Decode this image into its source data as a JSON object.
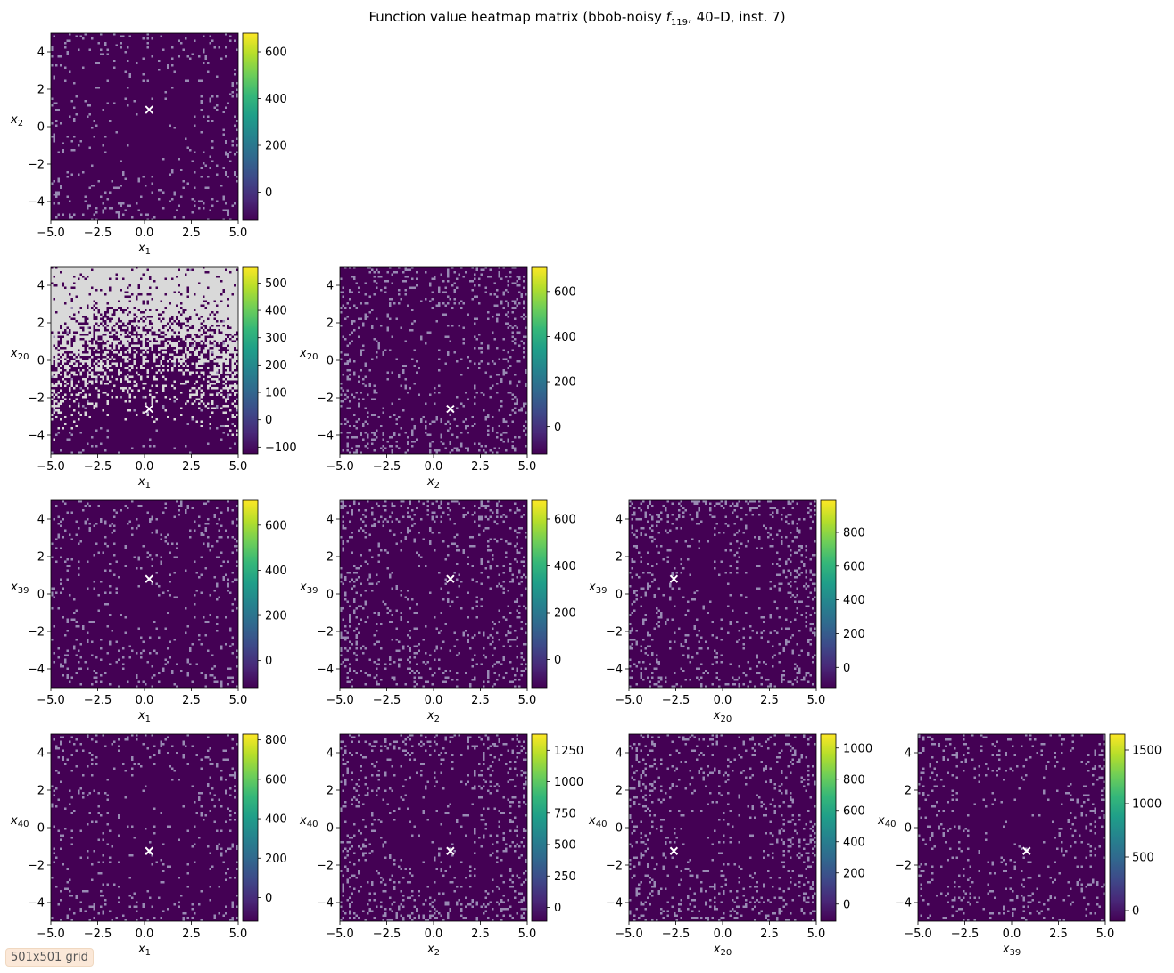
{
  "chart_data": {
    "type": "heatmap",
    "title": "Function value heatmap matrix (bbob-noisy $f_{119}$, 40–D, inst. 7)",
    "title_parts": {
      "prefix": "Function value heatmap matrix (bbob-noisy ",
      "fname": "f",
      "fsub": "119",
      "suffix": ", 40–D, inst. 7)"
    },
    "grid_label": "501x501 grid",
    "axis_range": [
      -5,
      5
    ],
    "axis_ticks": {
      "x": [
        "−5.0",
        "−2.5",
        "0.0",
        "2.5",
        "5.0"
      ],
      "y": [
        "−4",
        "−2",
        "0",
        "2",
        "4"
      ]
    },
    "colormap": "viridis",
    "nan_color": "#d9d9d9",
    "marker_color": "#ffffff",
    "panels": [
      {
        "row": 0,
        "col": 0,
        "xdim": "1",
        "ydim": "2",
        "marker": [
          0.25,
          0.9
        ],
        "cbar_max": 680,
        "cbar_min": -120,
        "cbar_ticks": [
          "0",
          "200",
          "400",
          "600"
        ],
        "cbar_tick_values": [
          0,
          200,
          400,
          600
        ],
        "speckle": 0.05,
        "nan_frac": 0
      },
      {
        "row": 1,
        "col": 0,
        "xdim": "1",
        "ydim": "20",
        "marker": [
          0.25,
          -2.6
        ],
        "cbar_max": 560,
        "cbar_min": -125,
        "cbar_ticks": [
          "−100",
          "0",
          "100",
          "200",
          "300",
          "400",
          "500"
        ],
        "cbar_tick_values": [
          -100,
          0,
          100,
          200,
          300,
          400,
          500
        ],
        "speckle": 0.02,
        "nan_frac": 0.5
      },
      {
        "row": 1,
        "col": 1,
        "xdim": "2",
        "ydim": "20",
        "marker": [
          0.9,
          -2.6
        ],
        "cbar_max": 710,
        "cbar_min": -120,
        "cbar_ticks": [
          "0",
          "200",
          "400",
          "600"
        ],
        "cbar_tick_values": [
          0,
          200,
          400,
          600
        ],
        "speckle": 0.09,
        "nan_frac": 0
      },
      {
        "row": 2,
        "col": 0,
        "xdim": "1",
        "ydim": "39",
        "marker": [
          0.25,
          0.8
        ],
        "cbar_max": 710,
        "cbar_min": -120,
        "cbar_ticks": [
          "0",
          "200",
          "400",
          "600"
        ],
        "cbar_tick_values": [
          0,
          200,
          400,
          600
        ],
        "speckle": 0.06,
        "nan_frac": 0
      },
      {
        "row": 2,
        "col": 1,
        "xdim": "2",
        "ydim": "39",
        "marker": [
          0.9,
          0.8
        ],
        "cbar_max": 680,
        "cbar_min": -120,
        "cbar_ticks": [
          "0",
          "200",
          "400",
          "600"
        ],
        "cbar_tick_values": [
          0,
          200,
          400,
          600
        ],
        "speckle": 0.09,
        "nan_frac": 0
      },
      {
        "row": 2,
        "col": 2,
        "xdim": "20",
        "ydim": "39",
        "marker": [
          -2.6,
          0.8
        ],
        "cbar_max": 990,
        "cbar_min": -120,
        "cbar_ticks": [
          "0",
          "200",
          "400",
          "600",
          "800"
        ],
        "cbar_tick_values": [
          0,
          200,
          400,
          600,
          800
        ],
        "speckle": 0.09,
        "nan_frac": 0
      },
      {
        "row": 3,
        "col": 0,
        "xdim": "1",
        "ydim": "40",
        "marker": [
          0.25,
          -1.25
        ],
        "cbar_max": 830,
        "cbar_min": -120,
        "cbar_ticks": [
          "0",
          "200",
          "400",
          "600",
          "800"
        ],
        "cbar_tick_values": [
          0,
          200,
          400,
          600,
          800
        ],
        "speckle": 0.05,
        "nan_frac": 0
      },
      {
        "row": 3,
        "col": 1,
        "xdim": "2",
        "ydim": "40",
        "marker": [
          0.9,
          -1.25
        ],
        "cbar_max": 1380,
        "cbar_min": -110,
        "cbar_ticks": [
          "0",
          "250",
          "500",
          "750",
          "1000",
          "1250"
        ],
        "cbar_tick_values": [
          0,
          250,
          500,
          750,
          1000,
          1250
        ],
        "speckle": 0.09,
        "nan_frac": 0
      },
      {
        "row": 3,
        "col": 2,
        "xdim": "20",
        "ydim": "40",
        "marker": [
          -2.6,
          -1.25
        ],
        "cbar_max": 1090,
        "cbar_min": -110,
        "cbar_ticks": [
          "0",
          "200",
          "400",
          "600",
          "800",
          "1000"
        ],
        "cbar_tick_values": [
          0,
          200,
          400,
          600,
          800,
          1000
        ],
        "speckle": 0.09,
        "nan_frac": 0
      },
      {
        "row": 3,
        "col": 3,
        "xdim": "39",
        "ydim": "40",
        "marker": [
          0.8,
          -1.25
        ],
        "cbar_max": 1650,
        "cbar_min": -100,
        "cbar_ticks": [
          "0",
          "500",
          "1000",
          "1500"
        ],
        "cbar_tick_values": [
          0,
          500,
          1000,
          1500
        ],
        "speckle": 0.06,
        "nan_frac": 0
      }
    ]
  }
}
